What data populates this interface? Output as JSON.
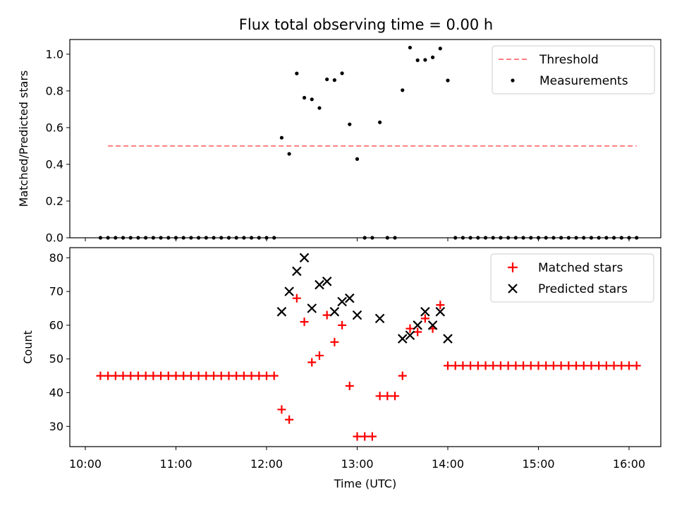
{
  "chart_data": [
    {
      "type": "scatter",
      "title": "Flux total observing time = 0.00 h",
      "xlabel": "",
      "ylabel": "Matched/Predicted stars",
      "xlim": [
        "10:00",
        "16:20"
      ],
      "ylim": [
        0,
        1.08
      ],
      "yticks": [
        0.0,
        0.2,
        0.4,
        0.6,
        0.8,
        1.0
      ],
      "ytick_labels": [
        "0.0",
        "0.2",
        "0.4",
        "0.6",
        "0.8",
        "1.0"
      ],
      "legend": "top-right",
      "series": [
        {
          "name": "Threshold",
          "kind": "dashed-line",
          "color": "#ff7f7f",
          "x": [
            "10:15",
            "16:05"
          ],
          "y": [
            0.5,
            0.5
          ]
        },
        {
          "name": "Measurements",
          "kind": "points",
          "color": "#000000",
          "x": [
            "10:10",
            "10:15",
            "10:20",
            "10:25",
            "10:30",
            "10:35",
            "10:40",
            "10:45",
            "10:50",
            "10:55",
            "11:00",
            "11:05",
            "11:10",
            "11:15",
            "11:20",
            "11:25",
            "11:30",
            "11:35",
            "11:40",
            "11:45",
            "11:50",
            "11:55",
            "12:00",
            "12:05",
            "12:10",
            "12:15",
            "12:20",
            "12:25",
            "12:30",
            "12:35",
            "12:40",
            "12:45",
            "12:50",
            "12:55",
            "13:00",
            "13:05",
            "13:10",
            "13:15",
            "13:20",
            "13:25",
            "13:30",
            "13:35",
            "13:40",
            "13:45",
            "13:50",
            "13:55",
            "14:00",
            "14:05",
            "14:10",
            "14:15",
            "14:20",
            "14:25",
            "14:30",
            "14:35",
            "14:40",
            "14:45",
            "14:50",
            "14:55",
            "15:00",
            "15:05",
            "15:10",
            "15:15",
            "15:20",
            "15:25",
            "15:30",
            "15:35",
            "15:40",
            "15:45",
            "15:50",
            "15:55",
            "16:00",
            "16:05"
          ],
          "y": [
            0,
            0,
            0,
            0,
            0,
            0,
            0,
            0,
            0,
            0,
            0,
            0,
            0,
            0,
            0,
            0,
            0,
            0,
            0,
            0,
            0,
            0,
            0,
            0,
            0.545,
            0.457,
            0.895,
            0.763,
            0.754,
            0.707,
            0.863,
            0.859,
            0.896,
            0.618,
            0.429,
            0,
            0,
            0.629,
            0,
            0,
            0.804,
            1.036,
            0.967,
            0.969,
            0.983,
            1.031,
            0.857,
            0,
            0,
            0,
            0,
            0,
            0,
            0,
            0,
            0,
            0,
            0,
            0,
            0,
            0,
            0,
            0,
            0,
            0,
            0,
            0,
            0,
            0,
            0,
            0,
            0
          ]
        }
      ]
    },
    {
      "type": "scatter",
      "title": "",
      "xlabel": "Time (UTC)",
      "ylabel": "Count",
      "xlim": [
        "10:00",
        "16:20"
      ],
      "ylim": [
        24,
        83
      ],
      "xticks": [
        "10:00",
        "11:00",
        "12:00",
        "13:00",
        "14:00",
        "15:00",
        "16:00"
      ],
      "yticks": [
        30,
        40,
        50,
        60,
        70,
        80
      ],
      "ytick_labels": [
        "30",
        "40",
        "50",
        "60",
        "70",
        "80"
      ],
      "legend": "top-right",
      "series": [
        {
          "name": "Matched stars",
          "marker": "plus",
          "color": "#ff0000",
          "x": [
            "10:10",
            "10:15",
            "10:20",
            "10:25",
            "10:30",
            "10:35",
            "10:40",
            "10:45",
            "10:50",
            "10:55",
            "11:00",
            "11:05",
            "11:10",
            "11:15",
            "11:20",
            "11:25",
            "11:30",
            "11:35",
            "11:40",
            "11:45",
            "11:50",
            "11:55",
            "12:00",
            "12:05",
            "12:10",
            "12:15",
            "12:20",
            "12:25",
            "12:30",
            "12:35",
            "12:40",
            "12:45",
            "12:50",
            "12:55",
            "13:00",
            "13:05",
            "13:10",
            "13:15",
            "13:20",
            "13:25",
            "13:30",
            "13:35",
            "13:40",
            "13:45",
            "13:50",
            "13:55",
            "14:00",
            "14:05",
            "14:10",
            "14:15",
            "14:20",
            "14:25",
            "14:30",
            "14:35",
            "14:40",
            "14:45",
            "14:50",
            "14:55",
            "15:00",
            "15:05",
            "15:10",
            "15:15",
            "15:20",
            "15:25",
            "15:30",
            "15:35",
            "15:40",
            "15:45",
            "15:50",
            "15:55",
            "16:00",
            "16:05"
          ],
          "y": [
            45,
            45,
            45,
            45,
            45,
            45,
            45,
            45,
            45,
            45,
            45,
            45,
            45,
            45,
            45,
            45,
            45,
            45,
            45,
            45,
            45,
            45,
            45,
            45,
            35,
            32,
            68,
            61,
            49,
            51,
            63,
            55,
            60,
            42,
            27,
            27,
            27,
            39,
            39,
            39,
            45,
            59,
            58,
            62,
            59,
            66,
            48,
            48,
            48,
            48,
            48,
            48,
            48,
            48,
            48,
            48,
            48,
            48,
            48,
            48,
            48,
            48,
            48,
            48,
            48,
            48,
            48,
            48,
            48,
            48,
            48,
            48
          ]
        },
        {
          "name": "Predicted stars",
          "marker": "x",
          "color": "#000000",
          "x": [
            "12:10",
            "12:15",
            "12:20",
            "12:25",
            "12:30",
            "12:35",
            "12:40",
            "12:45",
            "12:50",
            "12:55",
            "13:00",
            "13:15",
            "13:30",
            "13:35",
            "13:40",
            "13:45",
            "13:50",
            "13:55",
            "14:00"
          ],
          "y": [
            64,
            70,
            76,
            80,
            65,
            72,
            73,
            64,
            67,
            68,
            63,
            62,
            56,
            57,
            60,
            64,
            60,
            64,
            56
          ]
        }
      ]
    }
  ]
}
